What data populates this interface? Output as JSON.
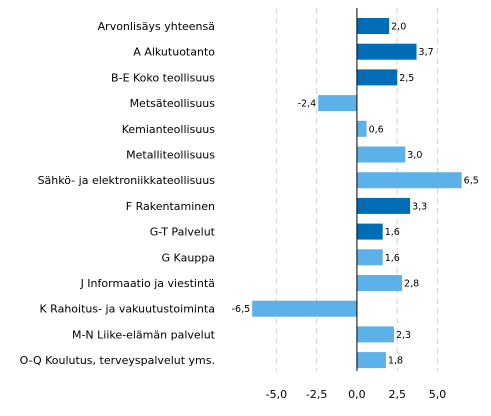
{
  "chart_data": {
    "type": "bar",
    "orientation": "horizontal",
    "title": "",
    "xlabel": "",
    "ylabel": "",
    "xlim": [
      -8.0,
      7.7
    ],
    "xticks": [
      -5.0,
      -2.5,
      0.0,
      2.5,
      5.0
    ],
    "tick_labels": [
      "-5,0",
      "-2,5",
      "0,0",
      "2,5",
      "5,0"
    ],
    "grid": "vertical dashed",
    "legend": "none",
    "colors": {
      "dark": "#006db6",
      "light": "#5bb1e8"
    },
    "categories": [
      "Arvonlisäys yhteensä",
      "A Alkutuotanto",
      "B-E Koko teollisuus",
      "Metsäteollisuus",
      "Kemianteollisuus",
      "Metalliteollisuus",
      "Sähkö- ja elektroniikkateollisuus",
      "F Rakentaminen",
      "G-T Palvelut",
      "G Kauppa",
      "J Informaatio ja viestintä",
      "K Rahoitus- ja vakuutustoiminta",
      "M-N Liike-elämän palvelut",
      "O-Q Koulutus, terveyspalvelut yms."
    ],
    "values": [
      2.0,
      3.7,
      2.5,
      -2.4,
      0.6,
      3.0,
      6.5,
      3.3,
      1.6,
      1.6,
      2.8,
      -6.5,
      2.3,
      1.8
    ],
    "value_labels": [
      "2,0",
      "3,7",
      "2,5",
      "-2,4",
      "0,6",
      "3,0",
      "6,5",
      "3,3",
      "1,6",
      "1,6",
      "2,8",
      "-6,5",
      "2,3",
      "1,8"
    ],
    "bar_colors": [
      "dark",
      "dark",
      "dark",
      "light",
      "light",
      "light",
      "light",
      "dark",
      "dark",
      "light",
      "light",
      "light",
      "light",
      "light"
    ]
  }
}
